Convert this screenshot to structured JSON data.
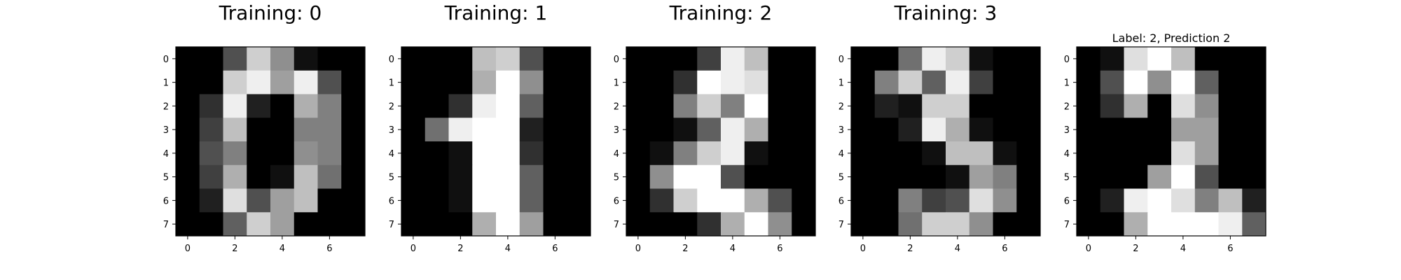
{
  "chart_data": [
    {
      "type": "heatmap",
      "title": "Training: 0",
      "colormap": "gray_r",
      "x_ticks": [
        "0",
        "2",
        "4",
        "6"
      ],
      "y_ticks": [
        "0",
        "1",
        "2",
        "3",
        "4",
        "5",
        "6",
        "7"
      ],
      "xlim": [
        -0.5,
        7.5
      ],
      "ylim": [
        7.5,
        -0.5
      ],
      "grid": false,
      "values": [
        [
          0,
          0,
          5,
          13,
          9,
          1,
          0,
          0
        ],
        [
          0,
          0,
          13,
          15,
          10,
          15,
          5,
          0
        ],
        [
          0,
          3,
          15,
          2,
          0,
          11,
          8,
          0
        ],
        [
          0,
          4,
          12,
          0,
          0,
          8,
          8,
          0
        ],
        [
          0,
          5,
          8,
          0,
          0,
          9,
          8,
          0
        ],
        [
          0,
          4,
          11,
          0,
          1,
          12,
          7,
          0
        ],
        [
          0,
          2,
          14,
          5,
          10,
          12,
          0,
          0
        ],
        [
          0,
          0,
          6,
          13,
          10,
          0,
          0,
          0
        ]
      ]
    },
    {
      "type": "heatmap",
      "title": "Training: 1",
      "colormap": "gray_r",
      "x_ticks": [
        "0",
        "2",
        "4",
        "6"
      ],
      "y_ticks": [
        "0",
        "1",
        "2",
        "3",
        "4",
        "5",
        "6",
        "7"
      ],
      "xlim": [
        -0.5,
        7.5
      ],
      "ylim": [
        7.5,
        -0.5
      ],
      "grid": false,
      "values": [
        [
          0,
          0,
          0,
          12,
          13,
          5,
          0,
          0
        ],
        [
          0,
          0,
          0,
          11,
          16,
          9,
          0,
          0
        ],
        [
          0,
          0,
          3,
          15,
          16,
          6,
          0,
          0
        ],
        [
          0,
          7,
          15,
          16,
          16,
          2,
          0,
          0
        ],
        [
          0,
          0,
          1,
          16,
          16,
          3,
          0,
          0
        ],
        [
          0,
          0,
          1,
          16,
          16,
          6,
          0,
          0
        ],
        [
          0,
          0,
          1,
          16,
          16,
          6,
          0,
          0
        ],
        [
          0,
          0,
          0,
          11,
          16,
          10,
          0,
          0
        ]
      ]
    },
    {
      "type": "heatmap",
      "title": "Training: 2",
      "colormap": "gray_r",
      "x_ticks": [
        "0",
        "2",
        "4",
        "6"
      ],
      "y_ticks": [
        "0",
        "1",
        "2",
        "3",
        "4",
        "5",
        "6",
        "7"
      ],
      "xlim": [
        -0.5,
        7.5
      ],
      "ylim": [
        7.5,
        -0.5
      ],
      "grid": false,
      "values": [
        [
          0,
          0,
          0,
          4,
          15,
          12,
          0,
          0
        ],
        [
          0,
          0,
          3,
          16,
          15,
          14,
          0,
          0
        ],
        [
          0,
          0,
          8,
          13,
          8,
          16,
          0,
          0
        ],
        [
          0,
          0,
          1,
          6,
          15,
          11,
          0,
          0
        ],
        [
          0,
          1,
          8,
          13,
          15,
          1,
          0,
          0
        ],
        [
          0,
          9,
          16,
          16,
          5,
          0,
          0,
          0
        ],
        [
          0,
          3,
          13,
          16,
          16,
          11,
          5,
          0
        ],
        [
          0,
          0,
          0,
          3,
          11,
          16,
          9,
          0
        ]
      ]
    },
    {
      "type": "heatmap",
      "title": "Training: 3",
      "colormap": "gray_r",
      "x_ticks": [
        "0",
        "2",
        "4",
        "6"
      ],
      "y_ticks": [
        "0",
        "1",
        "2",
        "3",
        "4",
        "5",
        "6",
        "7"
      ],
      "xlim": [
        -0.5,
        7.5
      ],
      "ylim": [
        7.5,
        -0.5
      ],
      "grid": false,
      "values": [
        [
          0,
          0,
          7,
          15,
          13,
          1,
          0,
          0
        ],
        [
          0,
          8,
          13,
          6,
          15,
          4,
          0,
          0
        ],
        [
          0,
          2,
          1,
          13,
          13,
          0,
          0,
          0
        ],
        [
          0,
          0,
          2,
          15,
          11,
          1,
          0,
          0
        ],
        [
          0,
          0,
          0,
          1,
          12,
          12,
          1,
          0
        ],
        [
          0,
          0,
          0,
          0,
          1,
          10,
          8,
          0
        ],
        [
          0,
          0,
          8,
          4,
          5,
          14,
          9,
          0
        ],
        [
          0,
          0,
          7,
          13,
          13,
          9,
          0,
          0
        ]
      ]
    },
    {
      "type": "heatmap",
      "title": "Label: 2, Prediction 2",
      "colormap": "gray_r",
      "x_ticks": [
        "0",
        "2",
        "4",
        "6"
      ],
      "y_ticks": [
        "0",
        "1",
        "2",
        "3",
        "4",
        "5",
        "6",
        "7"
      ],
      "xlim": [
        -0.5,
        7.5
      ],
      "ylim": [
        7.5,
        -0.5
      ],
      "grid": false,
      "values": [
        [
          0,
          1,
          14,
          16,
          12,
          0,
          0,
          0
        ],
        [
          0,
          5,
          16,
          9,
          16,
          6,
          0,
          0
        ],
        [
          0,
          3,
          11,
          0,
          14,
          9,
          0,
          0
        ],
        [
          0,
          0,
          0,
          0,
          10,
          10,
          0,
          0
        ],
        [
          0,
          0,
          0,
          0,
          14,
          10,
          0,
          0
        ],
        [
          0,
          0,
          0,
          10,
          16,
          5,
          0,
          0
        ],
        [
          0,
          2,
          15,
          16,
          14,
          8,
          12,
          2
        ],
        [
          0,
          0,
          11,
          16,
          16,
          16,
          15,
          6
        ]
      ]
    }
  ]
}
